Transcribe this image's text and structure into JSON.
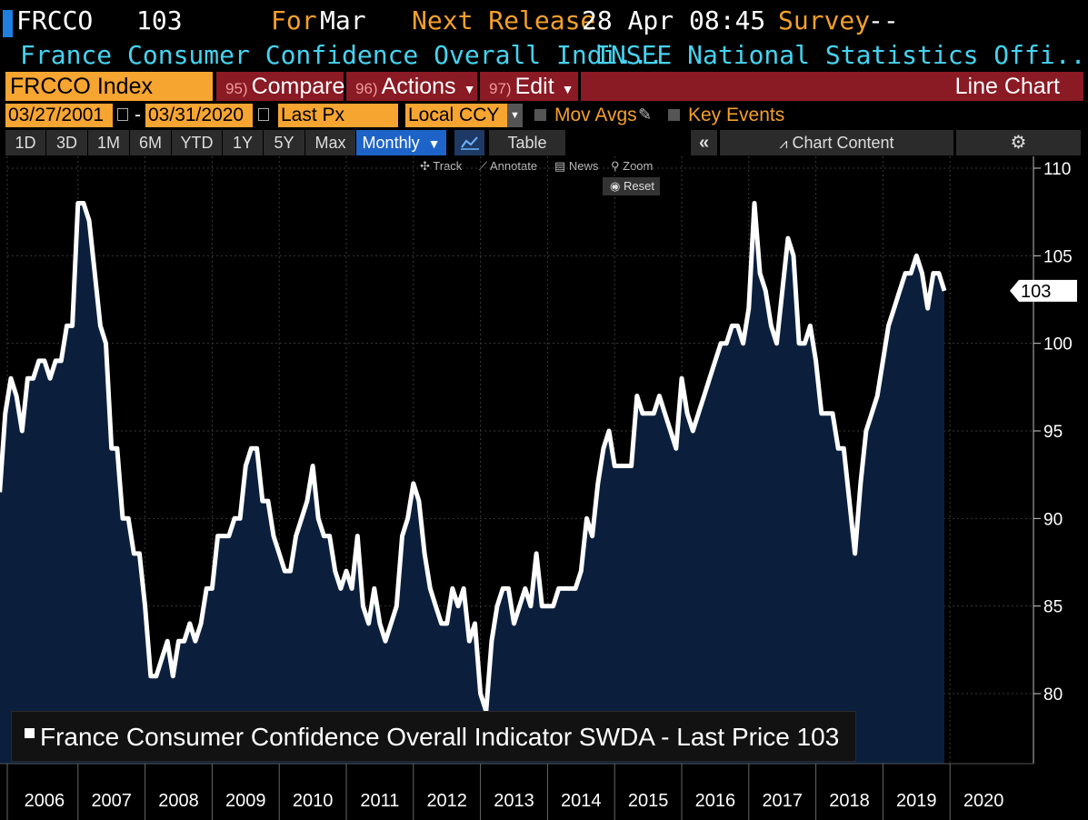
{
  "header": {
    "ticker": "FRCCO",
    "last_value": "103",
    "for_label": "For",
    "for_period": "Mar",
    "next_release_label": "Next Release",
    "next_release_value": "28 Apr 08:45",
    "survey_label": "Survey",
    "survey_value": "--",
    "description": "France Consumer Confidence Overall Indi...",
    "source": "INSEE National Statistics Offi..."
  },
  "command_bar": {
    "security": "FRCCO Index",
    "compare_num": "95)",
    "compare_label": "Compare",
    "actions_num": "96)",
    "actions_label": "Actions",
    "edit_num": "97)",
    "edit_label": "Edit",
    "view_title": "Line Chart"
  },
  "settings_row": {
    "start_date": "03/27/2001",
    "end_date": "03/31/2020",
    "field": "Last Px",
    "currency": "Local CCY",
    "mov_avgs": "Mov Avgs",
    "key_events": "Key Events"
  },
  "range_tabs": [
    "1D",
    "3D",
    "1M",
    "6M",
    "YTD",
    "1Y",
    "5Y",
    "Max"
  ],
  "frequency": "Monthly",
  "table_label": "Table",
  "chart_content_label": "Chart Content",
  "tools": {
    "track": "Track",
    "annotate": "Annotate",
    "news": "News",
    "zoom": "Zoom",
    "reset": "Reset"
  },
  "colors": {
    "line": "#ffffff",
    "area_fill": "#0b1f3d",
    "orange": "#f5a02a",
    "cyan": "#45d3f0",
    "red_bar": "#8a1a24",
    "selected_tab": "#1e64c8"
  },
  "chart_data": {
    "type": "area",
    "series": [
      {
        "name": "France Consumer Confidence Overall Indicator SWDA - Last Price 103",
        "points": [
          [
            "2005-11",
            91.5
          ],
          [
            "2005-12",
            96
          ],
          [
            "2006-01",
            98
          ],
          [
            "2006-02",
            97
          ],
          [
            "2006-03",
            95
          ],
          [
            "2006-04",
            98
          ],
          [
            "2006-05",
            98
          ],
          [
            "2006-06",
            99
          ],
          [
            "2006-07",
            99
          ],
          [
            "2006-08",
            98
          ],
          [
            "2006-09",
            99
          ],
          [
            "2006-10",
            99
          ],
          [
            "2006-11",
            101
          ],
          [
            "2006-12",
            101
          ],
          [
            "2007-01",
            108
          ],
          [
            "2007-02",
            108
          ],
          [
            "2007-03",
            107
          ],
          [
            "2007-04",
            104
          ],
          [
            "2007-05",
            101
          ],
          [
            "2007-06",
            100
          ],
          [
            "2007-07",
            94
          ],
          [
            "2007-08",
            94
          ],
          [
            "2007-09",
            90
          ],
          [
            "2007-10",
            90
          ],
          [
            "2007-11",
            88
          ],
          [
            "2007-12",
            88
          ],
          [
            "2008-01",
            85
          ],
          [
            "2008-02",
            81
          ],
          [
            "2008-03",
            81
          ],
          [
            "2008-04",
            82
          ],
          [
            "2008-05",
            83
          ],
          [
            "2008-06",
            81
          ],
          [
            "2008-07",
            83
          ],
          [
            "2008-08",
            83
          ],
          [
            "2008-09",
            84
          ],
          [
            "2008-10",
            83
          ],
          [
            "2008-11",
            84
          ],
          [
            "2008-12",
            86
          ],
          [
            "2009-01",
            86
          ],
          [
            "2009-02",
            89
          ],
          [
            "2009-03",
            89
          ],
          [
            "2009-04",
            89
          ],
          [
            "2009-05",
            90
          ],
          [
            "2009-06",
            90
          ],
          [
            "2009-07",
            93
          ],
          [
            "2009-08",
            94
          ],
          [
            "2009-09",
            94
          ],
          [
            "2009-10",
            91
          ],
          [
            "2009-11",
            91
          ],
          [
            "2009-12",
            89
          ],
          [
            "2010-01",
            88
          ],
          [
            "2010-02",
            87
          ],
          [
            "2010-03",
            87
          ],
          [
            "2010-04",
            89
          ],
          [
            "2010-05",
            90
          ],
          [
            "2010-06",
            91
          ],
          [
            "2010-07",
            93
          ],
          [
            "2010-08",
            90
          ],
          [
            "2010-09",
            89
          ],
          [
            "2010-10",
            89
          ],
          [
            "2010-11",
            87
          ],
          [
            "2010-12",
            86
          ],
          [
            "2011-01",
            87
          ],
          [
            "2011-02",
            86
          ],
          [
            "2011-03",
            89
          ],
          [
            "2011-04",
            85
          ],
          [
            "2011-05",
            84
          ],
          [
            "2011-06",
            86
          ],
          [
            "2011-07",
            84
          ],
          [
            "2011-08",
            83
          ],
          [
            "2011-09",
            84
          ],
          [
            "2011-10",
            85
          ],
          [
            "2011-11",
            89
          ],
          [
            "2011-12",
            90
          ],
          [
            "2012-01",
            92
          ],
          [
            "2012-02",
            91
          ],
          [
            "2012-03",
            88
          ],
          [
            "2012-04",
            86
          ],
          [
            "2012-05",
            85
          ],
          [
            "2012-06",
            84
          ],
          [
            "2012-07",
            84
          ],
          [
            "2012-08",
            86
          ],
          [
            "2012-09",
            85
          ],
          [
            "2012-10",
            86
          ],
          [
            "2012-11",
            83
          ],
          [
            "2012-12",
            84
          ],
          [
            "2013-01",
            80
          ],
          [
            "2013-02",
            79
          ],
          [
            "2013-03",
            83
          ],
          [
            "2013-04",
            85
          ],
          [
            "2013-05",
            86
          ],
          [
            "2013-06",
            86
          ],
          [
            "2013-07",
            84
          ],
          [
            "2013-08",
            85
          ],
          [
            "2013-09",
            86
          ],
          [
            "2013-10",
            85
          ],
          [
            "2013-11",
            88
          ],
          [
            "2013-12",
            85
          ],
          [
            "2014-01",
            85
          ],
          [
            "2014-02",
            85
          ],
          [
            "2014-03",
            86
          ],
          [
            "2014-04",
            86
          ],
          [
            "2014-05",
            86
          ],
          [
            "2014-06",
            86
          ],
          [
            "2014-07",
            87
          ],
          [
            "2014-08",
            90
          ],
          [
            "2014-09",
            89
          ],
          [
            "2014-10",
            92
          ],
          [
            "2014-11",
            94
          ],
          [
            "2014-12",
            95
          ],
          [
            "2015-01",
            93
          ],
          [
            "2015-02",
            93
          ],
          [
            "2015-03",
            93
          ],
          [
            "2015-04",
            93
          ],
          [
            "2015-05",
            97
          ],
          [
            "2015-06",
            96
          ],
          [
            "2015-07",
            96
          ],
          [
            "2015-08",
            96
          ],
          [
            "2015-09",
            97
          ],
          [
            "2015-10",
            96
          ],
          [
            "2015-11",
            95
          ],
          [
            "2015-12",
            94
          ],
          [
            "2016-01",
            98
          ],
          [
            "2016-02",
            96
          ],
          [
            "2016-03",
            95
          ],
          [
            "2016-04",
            96
          ],
          [
            "2016-05",
            97
          ],
          [
            "2016-06",
            98
          ],
          [
            "2016-07",
            99
          ],
          [
            "2016-08",
            100
          ],
          [
            "2016-09",
            100
          ],
          [
            "2016-10",
            101
          ],
          [
            "2016-11",
            101
          ],
          [
            "2016-12",
            100
          ],
          [
            "2017-01",
            102
          ],
          [
            "2017-02",
            108
          ],
          [
            "2017-03",
            104
          ],
          [
            "2017-04",
            103
          ],
          [
            "2017-05",
            101
          ],
          [
            "2017-06",
            100
          ],
          [
            "2017-07",
            103
          ],
          [
            "2017-08",
            106
          ],
          [
            "2017-09",
            105
          ],
          [
            "2017-10",
            100
          ],
          [
            "2017-11",
            100
          ],
          [
            "2017-12",
            101
          ],
          [
            "2018-01",
            99
          ],
          [
            "2018-02",
            96
          ],
          [
            "2018-03",
            96
          ],
          [
            "2018-04",
            96
          ],
          [
            "2018-05",
            94
          ],
          [
            "2018-06",
            94
          ],
          [
            "2018-07",
            91
          ],
          [
            "2018-08",
            88
          ],
          [
            "2018-09",
            92
          ],
          [
            "2018-10",
            95
          ],
          [
            "2018-11",
            96
          ],
          [
            "2018-12",
            97
          ],
          [
            "2019-01",
            99
          ],
          [
            "2019-02",
            101
          ],
          [
            "2019-03",
            102
          ],
          [
            "2019-04",
            103
          ],
          [
            "2019-05",
            104
          ],
          [
            "2019-06",
            104
          ],
          [
            "2019-07",
            105
          ],
          [
            "2019-08",
            104
          ],
          [
            "2019-09",
            102
          ],
          [
            "2019-10",
            104
          ],
          [
            "2019-11",
            104
          ],
          [
            "2019-12",
            103
          ]
        ]
      }
    ],
    "x_tick_labels": [
      "2006",
      "2007",
      "2008",
      "2009",
      "2010",
      "2011",
      "2012",
      "2013",
      "2014",
      "2015",
      "2016",
      "2017",
      "2018",
      "2019",
      "2020"
    ],
    "y_ticks": [
      80,
      85,
      90,
      95,
      100,
      105,
      110
    ],
    "ylim": [
      76,
      110.5
    ],
    "last_price_tag": "103",
    "grid": true,
    "legend_position": "bottom-left"
  }
}
